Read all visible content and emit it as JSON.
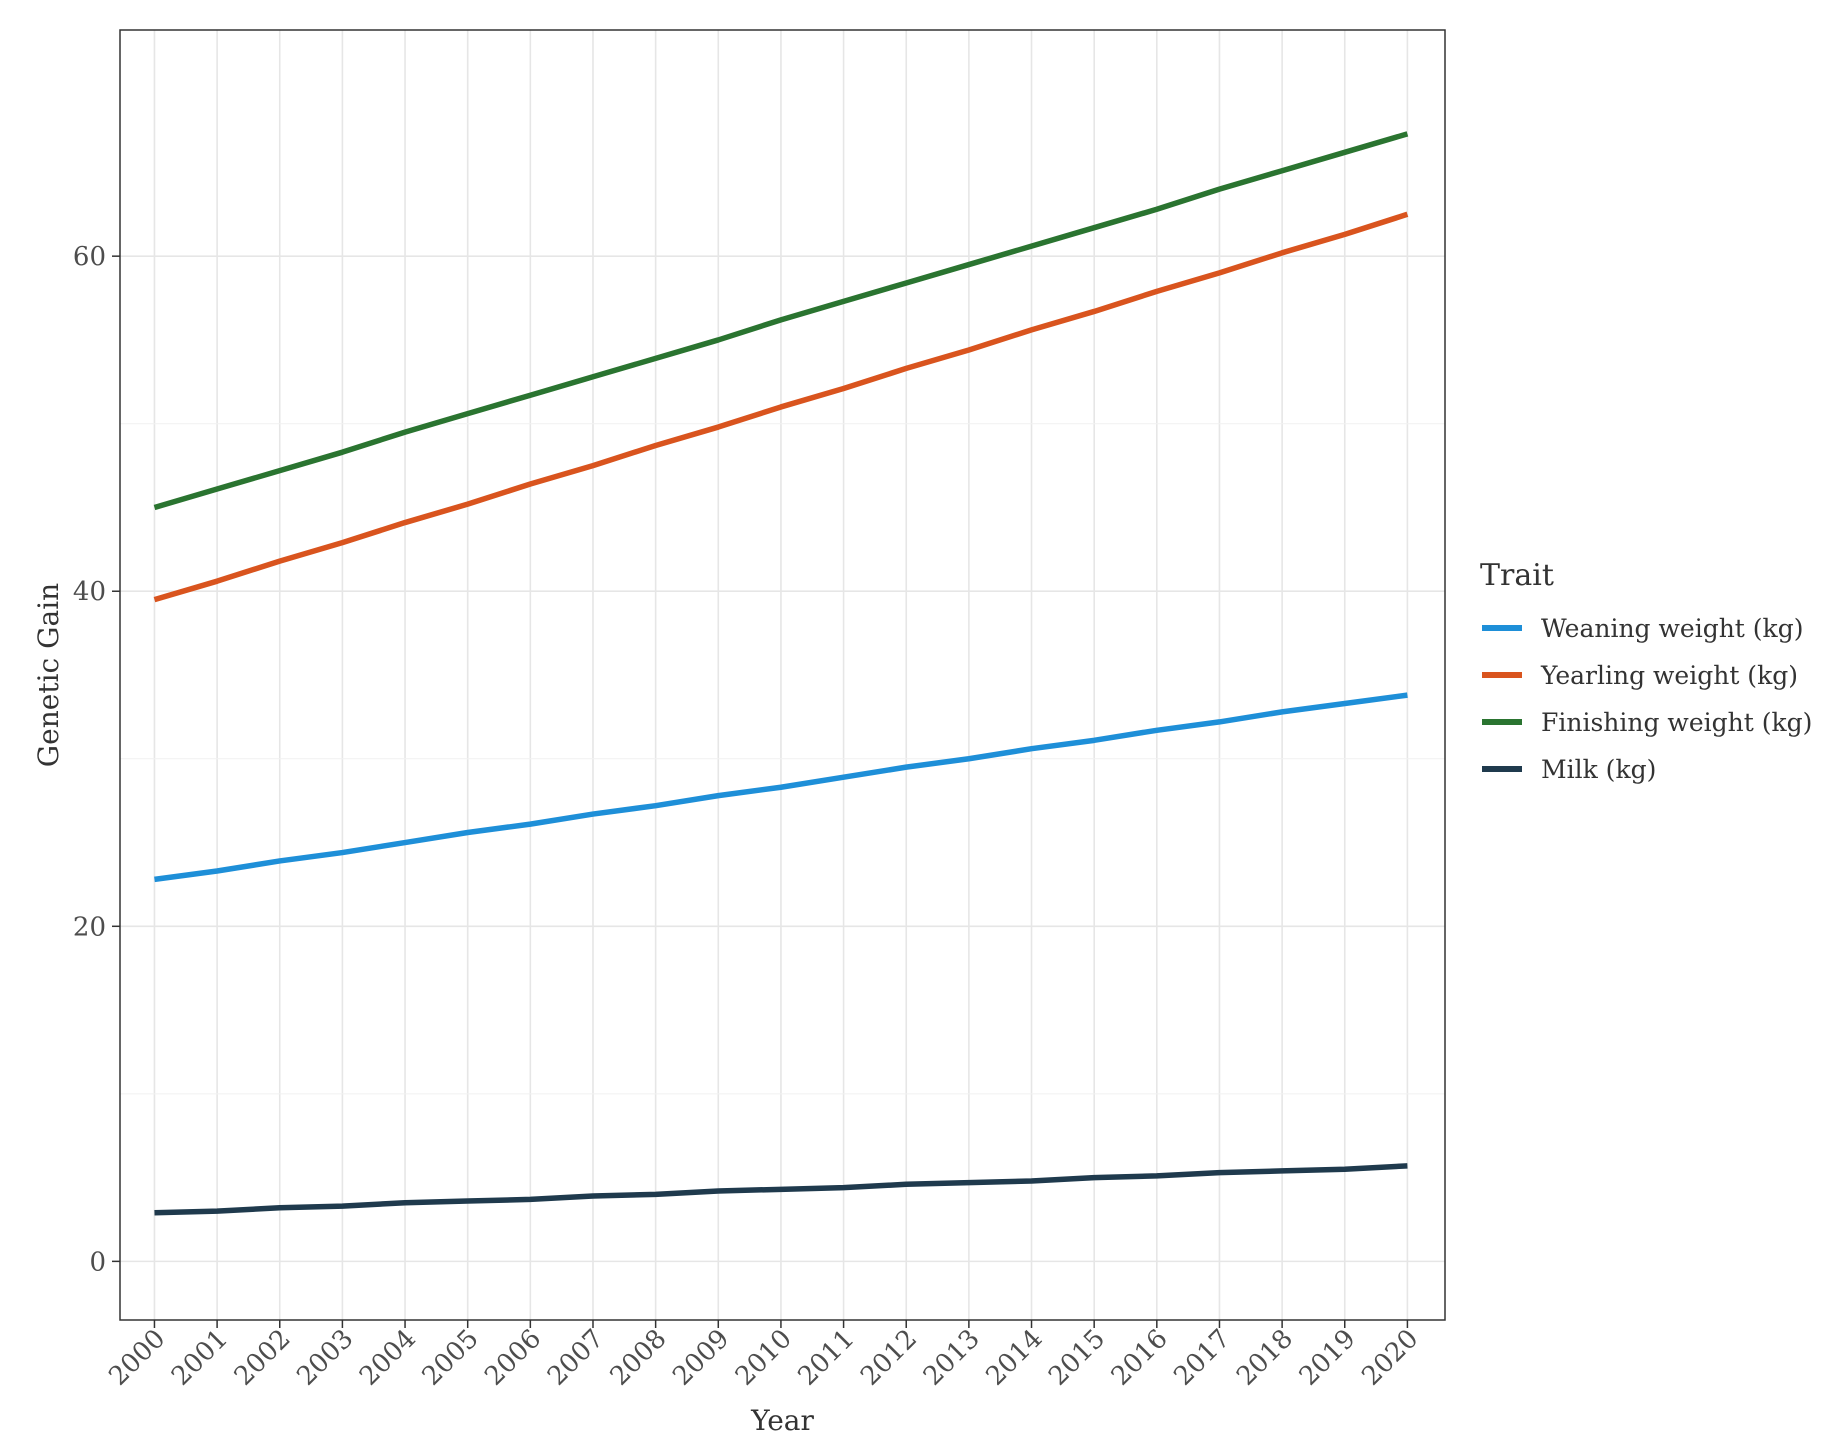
{
  "chart_data": {
    "type": "line",
    "title": "",
    "xlabel": "Year",
    "ylabel": "Genetic Gain",
    "x": [
      2000,
      2001,
      2002,
      2003,
      2004,
      2005,
      2006,
      2007,
      2008,
      2009,
      2010,
      2011,
      2012,
      2013,
      2014,
      2015,
      2016,
      2017,
      2018,
      2019,
      2020
    ],
    "x_tick_labels": [
      "2000",
      "2001",
      "2002",
      "2003",
      "2004",
      "2005",
      "2006",
      "2007",
      "2008",
      "2009",
      "2010",
      "2011",
      "2012",
      "2013",
      "2014",
      "2015",
      "2016",
      "2017",
      "2018",
      "2019",
      "2020"
    ],
    "y_ticks": [
      0,
      20,
      40,
      60
    ],
    "y_tick_labels": [
      "0",
      "20",
      "40",
      "60"
    ],
    "xlim": [
      1999.45,
      2020.6
    ],
    "ylim": [
      -3.5,
      73.5
    ],
    "grid": true,
    "legend": {
      "title": "Trait",
      "placement": "right"
    },
    "series": [
      {
        "name": "Weaning weight (kg)",
        "color": "#1e8fd8",
        "values": [
          22.8,
          23.3,
          23.9,
          24.4,
          25.0,
          25.6,
          26.1,
          26.7,
          27.2,
          27.8,
          28.3,
          28.9,
          29.5,
          30.0,
          30.6,
          31.1,
          31.7,
          32.2,
          32.8,
          33.3,
          33.8
        ]
      },
      {
        "name": "Yearling weight (kg)",
        "color": "#d9541e",
        "values": [
          39.5,
          40.6,
          41.8,
          42.9,
          44.1,
          45.2,
          46.4,
          47.5,
          48.7,
          49.8,
          51.0,
          52.1,
          53.3,
          54.4,
          55.6,
          56.7,
          57.9,
          59.0,
          60.2,
          61.3,
          62.5
        ]
      },
      {
        "name": "Finishing weight (kg)",
        "color": "#2a7430",
        "values": [
          45.0,
          46.1,
          47.2,
          48.3,
          49.5,
          50.6,
          51.7,
          52.8,
          53.9,
          55.0,
          56.2,
          57.3,
          58.4,
          59.5,
          60.6,
          61.7,
          62.8,
          64.0,
          65.1,
          66.2,
          67.3
        ]
      },
      {
        "name": "Milk (kg)",
        "color": "#1f3a4d",
        "values": [
          2.9,
          3.0,
          3.2,
          3.3,
          3.5,
          3.6,
          3.7,
          3.9,
          4.0,
          4.2,
          4.3,
          4.4,
          4.6,
          4.7,
          4.8,
          5.0,
          5.1,
          5.3,
          5.4,
          5.5,
          5.7
        ]
      }
    ]
  }
}
